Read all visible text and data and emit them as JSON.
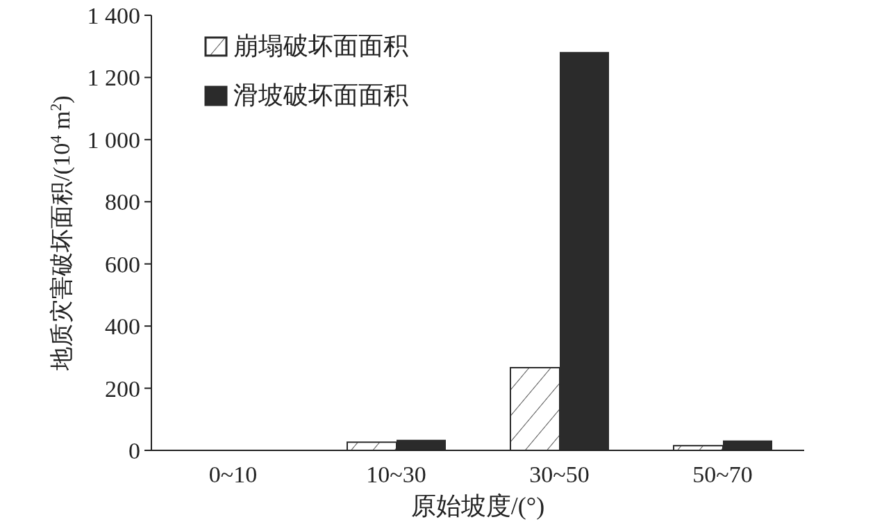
{
  "chart_data": {
    "type": "bar",
    "categories": [
      "0~10",
      "10~30",
      "30~50",
      "50~70"
    ],
    "series": [
      {
        "name": "崩塌破坏面面积",
        "color": "#2b2b2b",
        "values": [
          0,
          26,
          266,
          15
        ]
      },
      {
        "name": "滑坡破坏面面积",
        "color": "#2b2b2b",
        "values": [
          0,
          34,
          1282,
          32
        ]
      }
    ],
    "xlabel": "原始坡度/(°)",
    "ylabel": "地质灾害破坏面积/(10$^{4}$ m$^{2}$)",
    "ylim": [
      0,
      1400
    ],
    "yticks": [
      0,
      200,
      400,
      600,
      800,
      {
        "value": 1000,
        "label": "1 000"
      },
      {
        "value": 1200,
        "label": "1 200"
      },
      {
        "value": 1400,
        "label": "1 400"
      }
    ],
    "grid": false,
    "legend": "top left"
  }
}
